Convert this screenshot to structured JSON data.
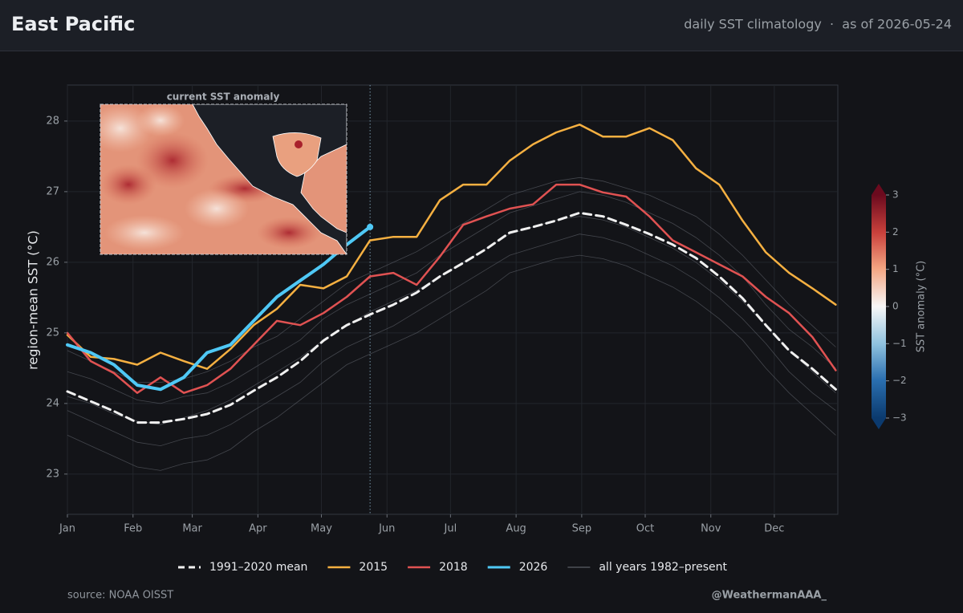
{
  "header": {
    "title": "East Pacific",
    "subtitle": "daily SST climatology  ·  as of 2026-05-24"
  },
  "chart_data": {
    "type": "line",
    "ylabel": "region-mean SST (°C)",
    "x": [
      0,
      11,
      22,
      33,
      44,
      55,
      66,
      77,
      88,
      99,
      110,
      121,
      132,
      143,
      154,
      165,
      176,
      187,
      198,
      209,
      220,
      231,
      242,
      253,
      264,
      275,
      286,
      297,
      308,
      319,
      330,
      341,
      352,
      363
    ],
    "xlim": [
      0,
      364
    ],
    "xticks": [
      {
        "value": 0,
        "label": "Jan"
      },
      {
        "value": 31,
        "label": "Feb"
      },
      {
        "value": 59,
        "label": "Mar"
      },
      {
        "value": 90,
        "label": "Apr"
      },
      {
        "value": 120,
        "label": "May"
      },
      {
        "value": 151,
        "label": "Jun"
      },
      {
        "value": 181,
        "label": "Jul"
      },
      {
        "value": 212,
        "label": "Aug"
      },
      {
        "value": 243,
        "label": "Sep"
      },
      {
        "value": 273,
        "label": "Oct"
      },
      {
        "value": 304,
        "label": "Nov"
      },
      {
        "value": 334,
        "label": "Dec"
      }
    ],
    "ylim": [
      22.43,
      28.51
    ],
    "yticks": [
      23,
      24,
      25,
      26,
      27,
      28
    ],
    "grid": true,
    "legend": "bottom",
    "series": [
      {
        "name": "1991–2020 mean",
        "color": "#f0f0f0",
        "style": "dashed",
        "width": 3,
        "values": [
          24.17,
          24.03,
          23.89,
          23.73,
          23.73,
          23.78,
          23.85,
          23.98,
          24.18,
          24.37,
          24.6,
          24.89,
          25.11,
          25.26,
          25.4,
          25.57,
          25.8,
          25.99,
          26.19,
          26.42,
          26.5,
          26.59,
          26.7,
          26.65,
          26.53,
          26.4,
          26.25,
          26.06,
          25.8,
          25.49,
          25.11,
          24.75,
          24.49,
          24.2
        ]
      },
      {
        "name": "2015",
        "color": "#f5b041",
        "style": "solid",
        "width": 2.5,
        "values": [
          24.97,
          24.66,
          24.63,
          24.55,
          24.72,
          24.6,
          24.49,
          24.77,
          25.11,
          25.34,
          25.68,
          25.63,
          25.8,
          26.31,
          26.36,
          26.36,
          26.88,
          27.1,
          27.1,
          27.44,
          27.67,
          27.84,
          27.95,
          27.78,
          27.78,
          27.9,
          27.73,
          27.33,
          27.1,
          26.59,
          26.14,
          25.85,
          25.63,
          25.4
        ]
      },
      {
        "name": "2018",
        "color": "#e05252",
        "style": "solid",
        "width": 2.5,
        "values": [
          25.0,
          24.6,
          24.43,
          24.15,
          24.37,
          24.15,
          24.26,
          24.49,
          24.83,
          25.17,
          25.11,
          25.28,
          25.51,
          25.8,
          25.85,
          25.68,
          26.08,
          26.53,
          26.65,
          26.76,
          26.82,
          27.1,
          27.1,
          26.99,
          26.93,
          26.65,
          26.31,
          26.14,
          25.97,
          25.8,
          25.51,
          25.28,
          24.94,
          24.47
        ]
      },
      {
        "name": "2026",
        "color": "#4fc8f5",
        "style": "solid",
        "width": 4,
        "end_marker": true,
        "values": [
          24.83,
          24.72,
          24.55,
          24.26,
          24.2,
          24.37,
          24.72,
          24.83,
          25.17,
          25.51,
          25.74,
          25.97,
          26.25,
          26.5,
          null,
          null,
          null,
          null,
          null,
          null,
          null,
          null,
          null,
          null,
          null,
          null,
          null,
          null,
          null,
          null,
          null,
          null,
          null,
          null
        ]
      }
    ],
    "background": {
      "name": "all years 1982–present",
      "color": "#6b7078",
      "lines": [
        [
          23.55,
          23.4,
          23.25,
          23.1,
          23.05,
          23.15,
          23.2,
          23.35,
          23.6,
          23.8,
          24.05,
          24.3,
          24.55,
          24.7,
          24.85,
          25.0,
          25.2,
          25.4,
          25.6,
          25.85,
          25.95,
          26.05,
          26.1,
          26.05,
          25.95,
          25.8,
          25.65,
          25.45,
          25.2,
          24.9,
          24.5,
          24.15,
          23.85,
          23.55
        ],
        [
          23.9,
          23.75,
          23.6,
          23.45,
          23.4,
          23.5,
          23.55,
          23.7,
          23.9,
          24.1,
          24.3,
          24.6,
          24.8,
          24.95,
          25.1,
          25.3,
          25.5,
          25.7,
          25.9,
          26.1,
          26.2,
          26.3,
          26.4,
          26.35,
          26.25,
          26.1,
          25.95,
          25.75,
          25.5,
          25.2,
          24.85,
          24.45,
          24.15,
          23.9
        ],
        [
          24.45,
          24.35,
          24.2,
          24.05,
          24.0,
          24.1,
          24.15,
          24.3,
          24.5,
          24.7,
          24.9,
          25.2,
          25.4,
          25.55,
          25.7,
          25.85,
          26.1,
          26.3,
          26.5,
          26.7,
          26.8,
          26.9,
          27.0,
          26.95,
          26.85,
          26.7,
          26.55,
          26.35,
          26.1,
          25.8,
          25.4,
          25.05,
          24.8,
          24.5
        ],
        [
          24.75,
          24.6,
          24.45,
          24.3,
          24.3,
          24.35,
          24.45,
          24.6,
          24.8,
          24.95,
          25.2,
          25.45,
          25.7,
          25.85,
          26.0,
          26.15,
          26.35,
          26.55,
          26.75,
          26.95,
          27.05,
          27.15,
          27.2,
          27.15,
          27.05,
          26.95,
          26.8,
          26.65,
          26.4,
          26.1,
          25.75,
          25.4,
          25.1,
          24.8
        ],
        [
          24.1,
          24.0,
          23.85,
          23.75,
          23.7,
          23.8,
          23.9,
          24.05,
          24.25,
          24.45,
          24.65,
          24.9,
          25.1,
          25.3,
          25.45,
          25.6,
          25.8,
          26.0,
          26.2,
          26.4,
          26.5,
          26.6,
          26.65,
          26.6,
          26.5,
          26.35,
          26.2,
          26.0,
          25.75,
          25.45,
          25.1,
          24.75,
          24.45,
          24.15
        ]
      ]
    },
    "inset_title": "current SST anomaly",
    "colorbar": {
      "label": "SST anomaly (°C)",
      "lim": [
        -3,
        3
      ],
      "ticks": [
        3,
        2,
        1,
        0,
        {
          "value": -1,
          "label": "−1"
        },
        {
          "value": -2,
          "label": "−2"
        },
        {
          "value": -3,
          "label": "−3"
        }
      ]
    }
  },
  "footer": {
    "source": "source: NOAA OISST",
    "credit": "@WeathermanAAA_"
  }
}
